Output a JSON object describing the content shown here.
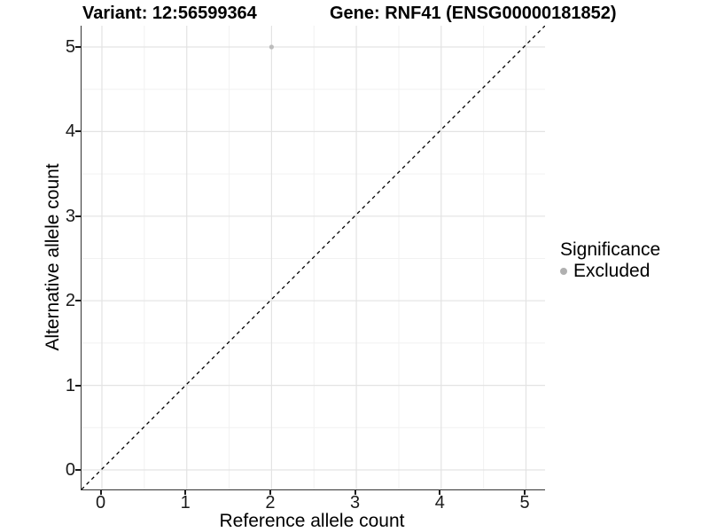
{
  "chart_data": {
    "type": "scatter",
    "titles": {
      "variant": "Variant: 12:56599364",
      "gene": "Gene: RNF41 (ENSG00000181852)"
    },
    "xlabel": "Reference allele count",
    "ylabel": "Alternative allele count",
    "xlim": [
      -0.25,
      5.25
    ],
    "ylim": [
      -0.25,
      5.25
    ],
    "x_ticks": [
      0,
      1,
      2,
      3,
      4,
      5
    ],
    "y_ticks": [
      0,
      1,
      2,
      3,
      4,
      5
    ],
    "minor_ticks": [
      0.5,
      1.5,
      2.5,
      3.5,
      4.5
    ],
    "grid": "major+minor",
    "points": [
      {
        "x": 2,
        "y": 5,
        "series": "Excluded"
      }
    ],
    "reference_line": {
      "slope": 1,
      "intercept": 0,
      "style": "dashed",
      "color": "#000000"
    },
    "legend": {
      "title": "Significance",
      "position": "right",
      "entries": [
        {
          "label": "Excluded",
          "color": "#b0b0b0",
          "marker": "circle"
        }
      ]
    },
    "colors": {
      "point": "#bcbcbc",
      "grid_major": "#e3e3e3",
      "grid_minor": "#f1f1f1",
      "axis_line": "#333333",
      "tick": "#1a1a1a",
      "text": "#000000"
    }
  }
}
